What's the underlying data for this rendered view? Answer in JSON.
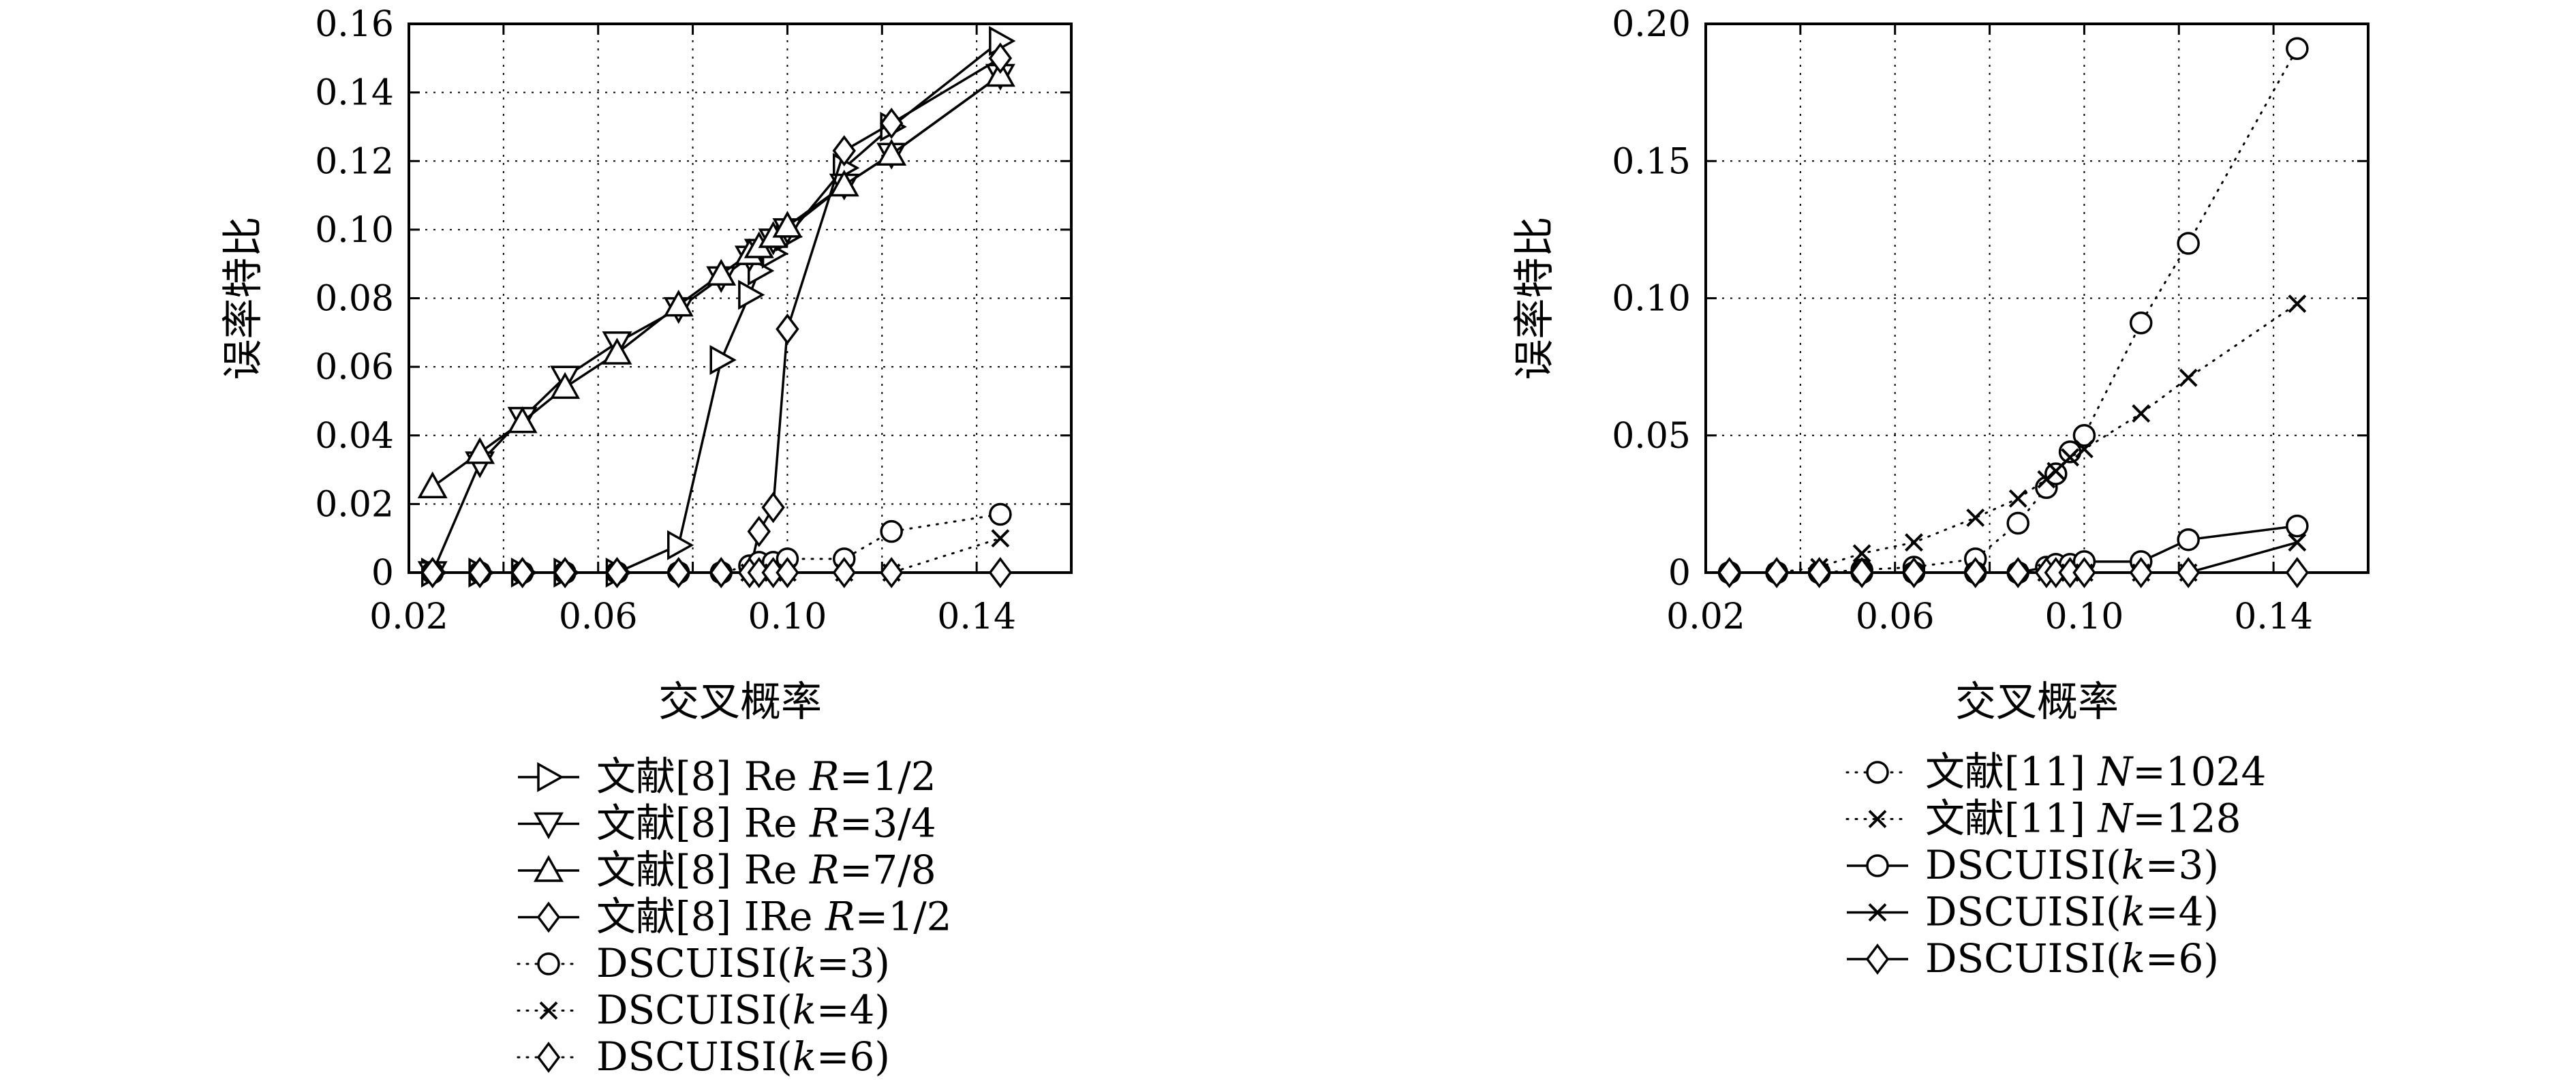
{
  "chart_data": [
    {
      "type": "line",
      "xlabel": "交叉概率",
      "ylabel": "误率特比",
      "xlim": [
        0.02,
        0.16
      ],
      "ylim": [
        0,
        0.16
      ],
      "xticks": [
        "0.02",
        "0.06",
        "0.10",
        "0.14"
      ],
      "yticks": [
        "0",
        "0.02",
        "0.04",
        "0.06",
        "0.08",
        "0.10",
        "0.12",
        "0.14",
        "0.16"
      ],
      "grid": true,
      "legend": "bottom",
      "x": [
        0.025,
        0.035,
        0.044,
        0.053,
        0.064,
        0.077,
        0.086,
        0.092,
        0.094,
        0.097,
        0.1,
        0.112,
        0.122,
        0.145
      ],
      "series": [
        {
          "name": "文献[8] Re R=1/2",
          "marker": "triangle-right",
          "line": "solid",
          "values": [
            0,
            0,
            0,
            0,
            0,
            0.008,
            0.062,
            0.081,
            0.088,
            0.093,
            0.098,
            0.118,
            0.13,
            0.155
          ]
        },
        {
          "name": "文献[8] Re R=3/4",
          "marker": "triangle-down",
          "line": "solid",
          "values": [
            0,
            0.032,
            0.045,
            0.057,
            0.067,
            0.077,
            0.086,
            0.092,
            0.094,
            0.097,
            0.1,
            0.113,
            0.122,
            0.145
          ]
        },
        {
          "name": "文献[8] Re R=7/8",
          "marker": "triangle-up",
          "line": "solid",
          "values": [
            0.025,
            0.035,
            0.044,
            0.054,
            0.064,
            0.078,
            0.087,
            0.093,
            0.095,
            0.098,
            0.101,
            0.113,
            0.122,
            0.145
          ]
        },
        {
          "name": "文献[8] IRe R=1/2",
          "marker": "diamond",
          "line": "solid",
          "values": [
            0,
            0,
            0,
            0,
            0,
            0,
            0,
            0,
            0.012,
            0.019,
            0.071,
            0.123,
            0.131,
            0.15
          ]
        },
        {
          "name": "DSCUISI(k=3)",
          "marker": "circle",
          "line": "dotted",
          "values": [
            0,
            0,
            0,
            0,
            0,
            0,
            0,
            0.002,
            0.003,
            0.003,
            0.004,
            0.004,
            0.012,
            0.017
          ]
        },
        {
          "name": "DSCUISI(k=4)",
          "marker": "x",
          "line": "dotted",
          "values": [
            0,
            0,
            0,
            0,
            0,
            0,
            0,
            0,
            0,
            0,
            0,
            0,
            0,
            0.01
          ]
        },
        {
          "name": "DSCUISI(k=6)",
          "marker": "diamond",
          "line": "dotted",
          "values": [
            0,
            0,
            0,
            0,
            0,
            0,
            0,
            0,
            0,
            0,
            0,
            0,
            0,
            0
          ]
        }
      ]
    },
    {
      "type": "line",
      "xlabel": "交叉概率",
      "ylabel": "误率特比",
      "xlim": [
        0.02,
        0.16
      ],
      "ylim": [
        0,
        0.2
      ],
      "xticks": [
        "0.02",
        "0.06",
        "0.10",
        "0.14"
      ],
      "yticks": [
        "0",
        "0.05",
        "0.10",
        "0.15",
        "0.20"
      ],
      "grid": true,
      "legend": "bottom",
      "x": [
        0.025,
        0.035,
        0.044,
        0.053,
        0.064,
        0.077,
        0.086,
        0.092,
        0.094,
        0.097,
        0.1,
        0.112,
        0.122,
        0.145
      ],
      "series": [
        {
          "name": "文献[11] N=1024",
          "marker": "circle",
          "line": "dotted",
          "values": [
            0,
            0,
            0,
            0.001,
            0.002,
            0.005,
            0.018,
            0.031,
            0.036,
            0.044,
            0.05,
            0.091,
            0.12,
            0.191
          ]
        },
        {
          "name": "文献[11] N=128",
          "marker": "x",
          "line": "dotted",
          "values": [
            0,
            0,
            0.002,
            0.007,
            0.011,
            0.02,
            0.027,
            0.034,
            0.037,
            0.042,
            0.045,
            0.058,
            0.071,
            0.098
          ]
        },
        {
          "name": "DSCUISI(k=3)",
          "marker": "circle",
          "line": "solid",
          "values": [
            0,
            0,
            0,
            0,
            0,
            0,
            0,
            0.002,
            0.003,
            0.003,
            0.004,
            0.004,
            0.012,
            0.017
          ]
        },
        {
          "name": "DSCUISI(k=4)",
          "marker": "x",
          "line": "solid",
          "values": [
            0,
            0,
            0,
            0,
            0,
            0,
            0,
            0,
            0,
            0,
            0,
            0,
            0,
            0.011
          ]
        },
        {
          "name": "DSCUISI(k=6)",
          "marker": "diamond",
          "line": "solid",
          "values": [
            0,
            0,
            0,
            0,
            0,
            0,
            0,
            0,
            0,
            0,
            0,
            0,
            0,
            0
          ]
        }
      ]
    }
  ]
}
